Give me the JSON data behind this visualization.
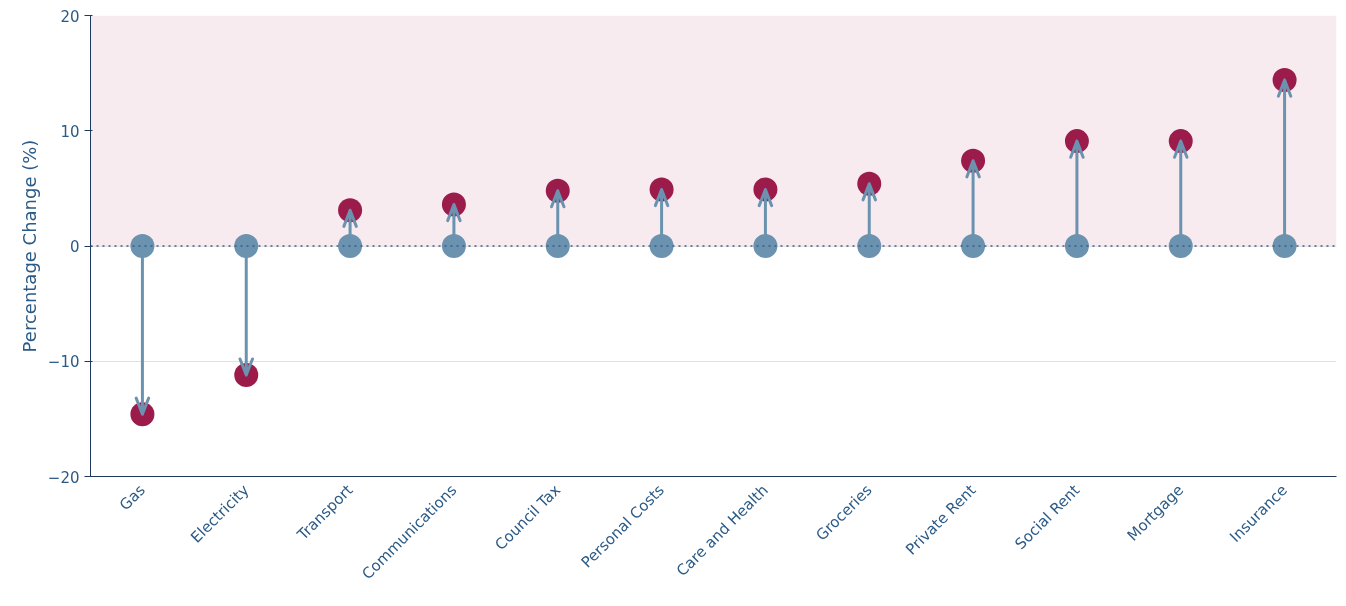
{
  "chart_data": {
    "type": "scatter",
    "ylabel": "Percentage Change (%)",
    "categories": [
      "Gas",
      "Electricity",
      "Transport",
      "Communications",
      "Council Tax",
      "Personal Costs",
      "Care and Health",
      "Groceries",
      "Private Rent",
      "Social Rent",
      "Mortgage",
      "Insurance"
    ],
    "series": [
      {
        "type": "scatter",
        "color": "#6b93b0",
        "values": [
          0,
          0,
          0,
          0,
          0,
          0,
          0,
          0,
          0,
          0,
          0,
          0
        ]
      },
      {
        "type": "scatter",
        "color": "#9b1b4a",
        "values": [
          -14.6,
          -11.2,
          3.1,
          3.6,
          4.8,
          4.9,
          4.9,
          5.4,
          7.4,
          9.1,
          9.1,
          14.4
        ]
      }
    ],
    "ylim": [
      -20,
      20
    ],
    "yticks": [
      -20,
      -10,
      0,
      10,
      20
    ],
    "grid": "y",
    "marker": "circle",
    "bands": [
      {
        "axis": "y",
        "from": 0,
        "to": 20,
        "color": "#f7ebf0"
      }
    ],
    "ref_lines": [
      {
        "axis": "y",
        "value": 0,
        "color": "#3a5f8a",
        "line_style": "dotted"
      }
    ]
  }
}
